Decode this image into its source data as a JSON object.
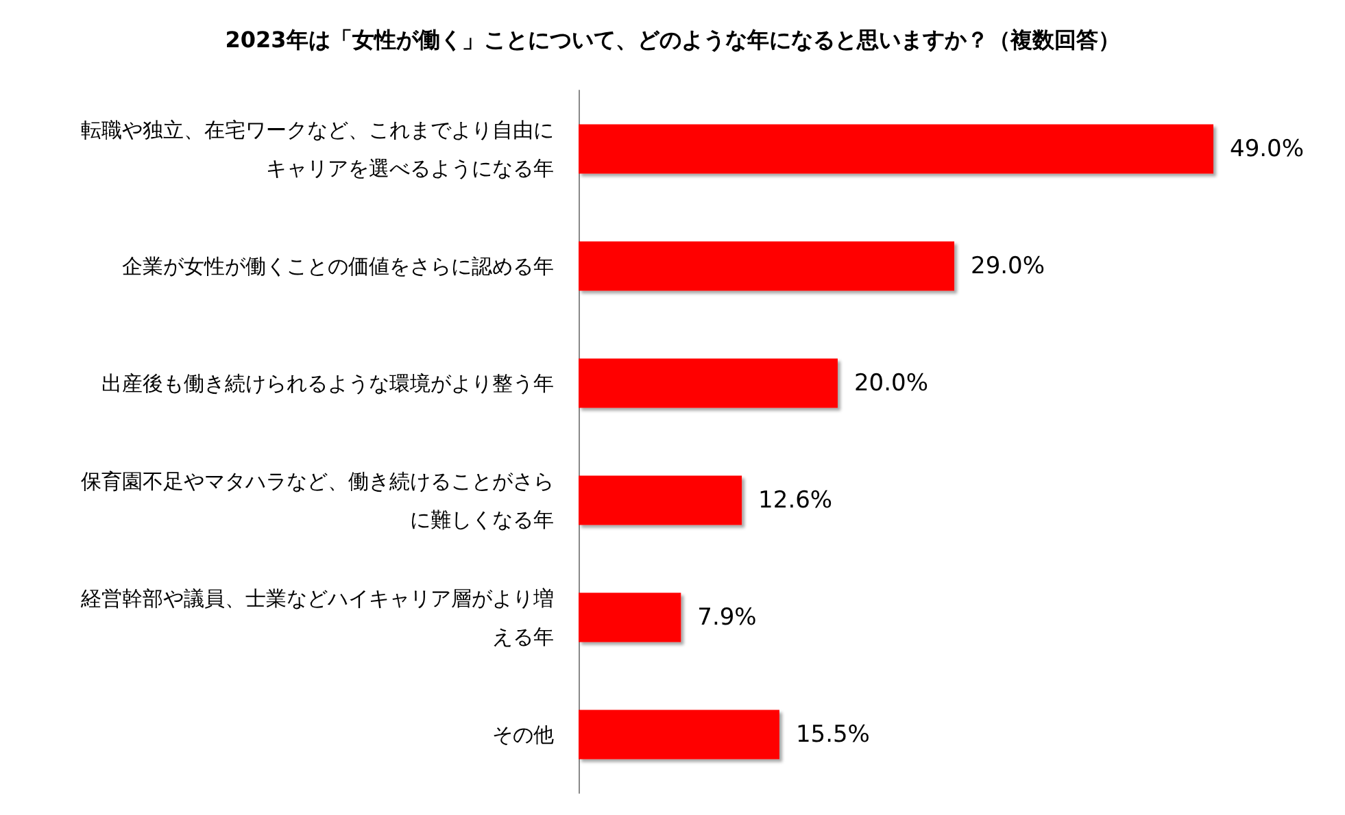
{
  "chart_data": {
    "type": "bar",
    "orientation": "horizontal",
    "title": "2023年は「女性が働く」ことについて、どのような年になると思いますか？（複数回答）",
    "categories": [
      "転職や独立、在宅ワークなど、これまでより自由にキャリアを選べるようになる年",
      "企業が女性が働くことの価値をさらに認める年",
      "出産後も働き続けられるような環境がより整う年",
      "保育園不足やマタハラなど、働き続けることがさらに難しくなる年",
      "経営幹部や議員、士業などハイキャリア層がより増える年",
      "その他"
    ],
    "values": [
      49.0,
      29.0,
      20.0,
      12.6,
      7.9,
      15.5
    ],
    "value_labels": [
      "49.0%",
      "29.0%",
      "20.0%",
      "12.6%",
      "7.9%",
      "15.5%"
    ],
    "color": "#ff0000"
  }
}
